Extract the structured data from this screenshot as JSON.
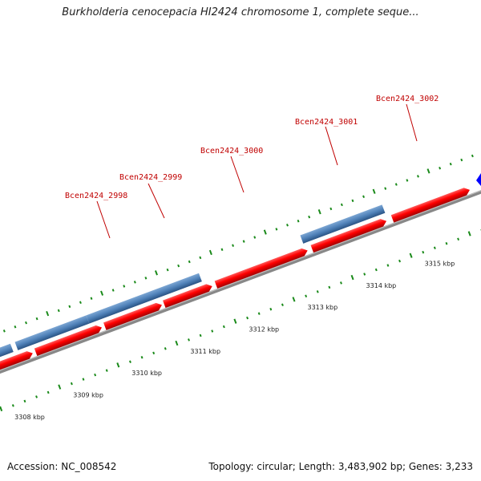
{
  "title": "Burkholderia cenocepacia HI2424 chromosome 1, complete seque...",
  "footer": {
    "accession": "Accession: NC_008542",
    "summary": "Topology: circular; Length: 3,483,902 bp; Genes: 3,233"
  },
  "scale": {
    "unit": "kbp",
    "ticks": [
      "3308 kbp",
      "3309 kbp",
      "3310 kbp",
      "3311 kbp",
      "3312 kbp",
      "3313 kbp",
      "3314 kbp",
      "3315 kbp"
    ]
  },
  "gene_labels": [
    "Bcen2424_2998",
    "Bcen2424_2999",
    "Bcen2424_3000",
    "Bcen2424_3001",
    "Bcen2424_3002"
  ],
  "colors": {
    "forward_gene": "#ff0000",
    "gene_feature": "#4f81b8",
    "backbone": "#808080",
    "tick_green": "#1a8a1a",
    "label_red": "#c00000",
    "edge_marker": "#0000ff"
  }
}
